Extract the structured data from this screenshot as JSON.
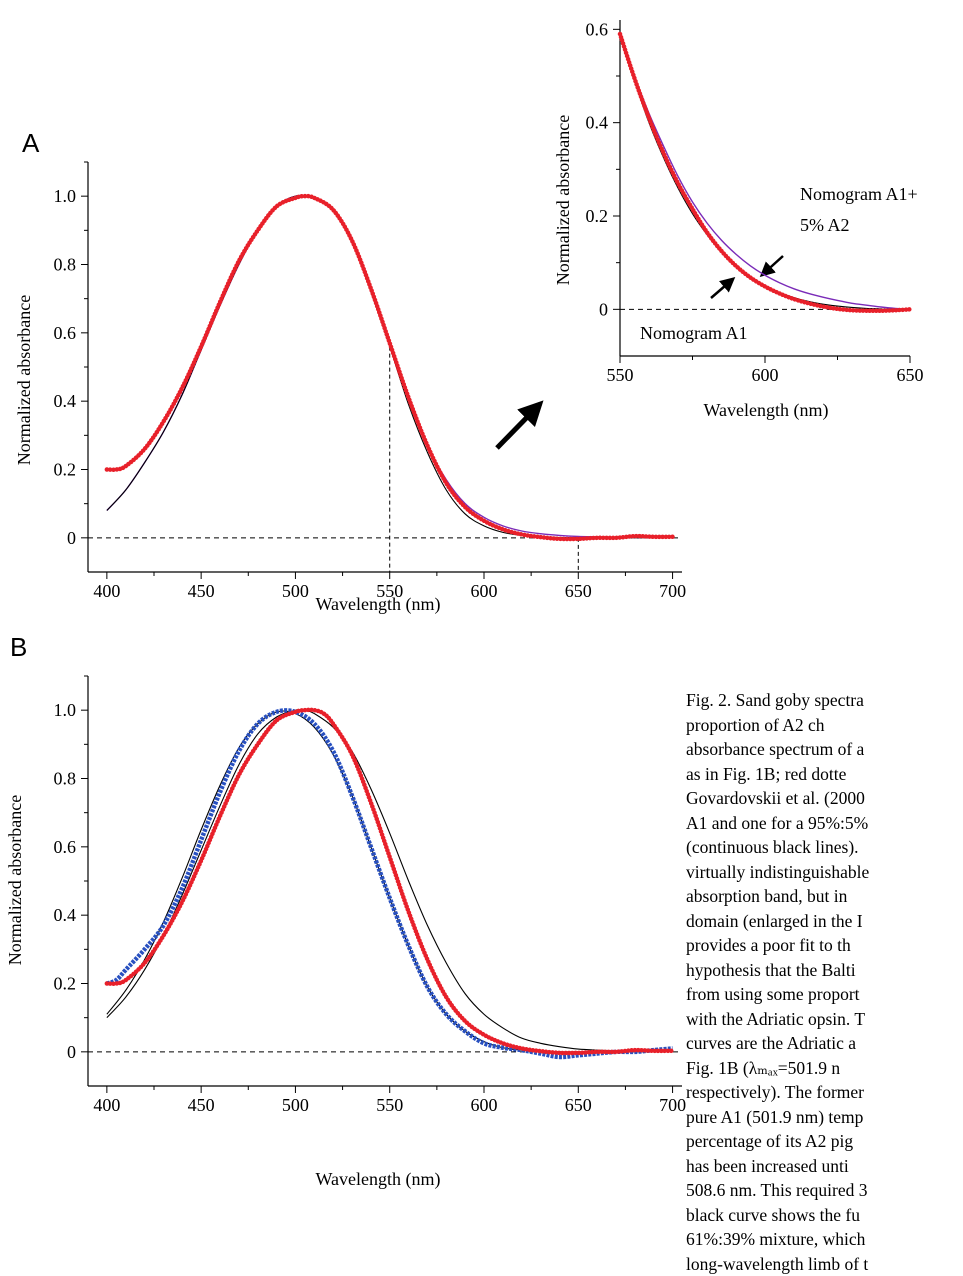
{
  "colors": {
    "red": "#e8202a",
    "purple": "#7a2bb8",
    "blue": "#2850c0",
    "black": "#000000"
  },
  "chart_data": [
    {
      "id": "A",
      "panel_label": "A",
      "type": "line",
      "title": "",
      "xlabel": "Wavelength (nm)",
      "ylabel": "Normalized absorbance",
      "xlim": [
        390,
        705
      ],
      "ylim": [
        -0.1,
        1.1
      ],
      "x_ticks": [
        "400",
        "450",
        "500",
        "550",
        "600",
        "650",
        "700"
      ],
      "y_ticks": [
        "0",
        "0.2",
        "0.4",
        "0.6",
        "0.8",
        "1.0"
      ],
      "reference_lines": [
        {
          "kind": "horizontal",
          "y": 0
        },
        {
          "kind": "vertical",
          "x": 550,
          "y_to": 0.58
        },
        {
          "kind": "vertical",
          "x": 650,
          "y_to": 0
        }
      ],
      "series": [
        {
          "color": "purple",
          "style": "solid",
          "x": [
            400,
            410,
            420,
            430,
            440,
            450,
            460,
            470,
            480,
            490,
            500,
            510,
            520,
            530,
            540,
            550,
            560,
            570,
            580,
            590,
            600,
            610,
            620,
            630,
            640,
            650,
            660,
            670,
            680,
            690,
            700
          ],
          "y": [
            0.08,
            0.14,
            0.22,
            0.31,
            0.42,
            0.55,
            0.68,
            0.8,
            0.9,
            0.97,
            1.0,
            0.995,
            0.96,
            0.87,
            0.73,
            0.57,
            0.41,
            0.27,
            0.17,
            0.1,
            0.06,
            0.035,
            0.02,
            0.012,
            0.007,
            0.004,
            0.003,
            0.002,
            0.001,
            0.001,
            0.0
          ]
        },
        {
          "color": "black",
          "style": "solid",
          "x": [
            400,
            410,
            420,
            430,
            440,
            450,
            460,
            470,
            480,
            490,
            500,
            510,
            520,
            530,
            540,
            550,
            560,
            570,
            580,
            590,
            600,
            610,
            620,
            630,
            640,
            650,
            660,
            670,
            680,
            690,
            700
          ],
          "y": [
            0.08,
            0.14,
            0.22,
            0.31,
            0.42,
            0.55,
            0.68,
            0.8,
            0.9,
            0.97,
            1.0,
            0.995,
            0.96,
            0.87,
            0.72,
            0.56,
            0.39,
            0.25,
            0.14,
            0.07,
            0.035,
            0.016,
            0.007,
            0.003,
            0.001,
            0.0,
            0.0,
            0.0,
            0.0,
            0.0,
            0.0
          ]
        },
        {
          "color": "red",
          "style": "dotted",
          "x": [
            400,
            405,
            410,
            420,
            430,
            440,
            450,
            460,
            470,
            480,
            490,
            500,
            505,
            510,
            520,
            530,
            540,
            550,
            560,
            570,
            580,
            590,
            600,
            610,
            620,
            630,
            640,
            650,
            660,
            670,
            680,
            690,
            700
          ],
          "y": [
            0.2,
            0.2,
            0.21,
            0.26,
            0.34,
            0.44,
            0.56,
            0.69,
            0.81,
            0.9,
            0.97,
            0.995,
            1.0,
            0.995,
            0.96,
            0.87,
            0.73,
            0.57,
            0.41,
            0.27,
            0.16,
            0.09,
            0.05,
            0.025,
            0.01,
            0.002,
            -0.003,
            -0.003,
            0.0,
            0.0,
            0.005,
            0.003,
            0.003
          ]
        }
      ]
    },
    {
      "id": "inset",
      "panel_label": "",
      "type": "line",
      "title": "",
      "xlabel": "Wavelength (nm)",
      "ylabel": "Normalized absorbance",
      "xlim": [
        550,
        650
      ],
      "ylim": [
        -0.1,
        0.62
      ],
      "x_ticks": [
        "550",
        "600",
        "650"
      ],
      "y_ticks": [
        "0",
        "0.2",
        "0.4",
        "0.6"
      ],
      "annotations": {
        "upper_line1": "Nomogram A1+",
        "upper_line2": "5% A2",
        "lower": "Nomogram A1"
      },
      "reference_lines": [
        {
          "kind": "horizontal",
          "y": 0
        }
      ],
      "series": [
        {
          "color": "purple",
          "style": "solid",
          "x": [
            550,
            555,
            560,
            565,
            570,
            575,
            580,
            585,
            590,
            595,
            600,
            605,
            610,
            615,
            620,
            625,
            630,
            635,
            640,
            645,
            650
          ],
          "y": [
            0.59,
            0.5,
            0.42,
            0.35,
            0.285,
            0.23,
            0.185,
            0.148,
            0.118,
            0.093,
            0.073,
            0.057,
            0.044,
            0.034,
            0.026,
            0.019,
            0.013,
            0.009,
            0.005,
            0.002,
            0.0
          ]
        },
        {
          "color": "black",
          "style": "solid",
          "x": [
            550,
            555,
            560,
            565,
            570,
            575,
            580,
            585,
            590,
            595,
            600,
            605,
            610,
            615,
            620,
            625,
            630,
            635,
            640,
            645,
            650
          ],
          "y": [
            0.59,
            0.49,
            0.4,
            0.325,
            0.26,
            0.205,
            0.16,
            0.122,
            0.092,
            0.068,
            0.05,
            0.036,
            0.025,
            0.017,
            0.011,
            0.007,
            0.004,
            0.002,
            0.001,
            0.0,
            0.0
          ]
        },
        {
          "color": "red",
          "style": "dotted",
          "x": [
            550,
            555,
            560,
            565,
            570,
            575,
            580,
            585,
            590,
            595,
            600,
            605,
            610,
            615,
            620,
            625,
            630,
            635,
            640,
            645,
            650
          ],
          "y": [
            0.59,
            0.495,
            0.41,
            0.335,
            0.27,
            0.215,
            0.165,
            0.125,
            0.093,
            0.068,
            0.049,
            0.034,
            0.022,
            0.013,
            0.006,
            0.001,
            -0.002,
            -0.003,
            -0.003,
            -0.002,
            0.0
          ]
        }
      ]
    },
    {
      "id": "B",
      "panel_label": "B",
      "type": "line",
      "title": "",
      "xlabel": "Wavelength (nm)",
      "ylabel": "Normalized absorbance",
      "xlim": [
        390,
        705
      ],
      "ylim": [
        -0.1,
        1.1
      ],
      "x_ticks": [
        "400",
        "450",
        "500",
        "550",
        "600",
        "650",
        "700"
      ],
      "y_ticks": [
        "0",
        "0.2",
        "0.4",
        "0.6",
        "0.8",
        "1.0"
      ],
      "reference_lines": [
        {
          "kind": "horizontal",
          "y": 0
        }
      ],
      "series": [
        {
          "color": "black",
          "style": "solid",
          "x": [
            400,
            410,
            420,
            430,
            440,
            450,
            460,
            470,
            480,
            490,
            500,
            505,
            510,
            520,
            530,
            540,
            550,
            560,
            570,
            580,
            590,
            600,
            610,
            620,
            630,
            640,
            650,
            660,
            670,
            680,
            690,
            700
          ],
          "y": [
            0.1,
            0.16,
            0.24,
            0.34,
            0.46,
            0.59,
            0.72,
            0.84,
            0.93,
            0.98,
            1.0,
            1.0,
            0.99,
            0.95,
            0.88,
            0.77,
            0.64,
            0.5,
            0.37,
            0.26,
            0.17,
            0.11,
            0.07,
            0.04,
            0.025,
            0.015,
            0.008,
            0.005,
            0.003,
            0.002,
            0.001,
            0.0
          ]
        },
        {
          "color": "black",
          "style": "solid",
          "x": [
            400,
            410,
            420,
            430,
            440,
            450,
            460,
            470,
            480,
            490,
            500,
            510,
            520,
            530,
            540,
            550,
            560,
            570,
            580,
            590,
            600,
            610,
            620,
            630,
            640,
            650,
            660,
            670,
            680,
            690,
            700
          ],
          "y": [
            0.11,
            0.18,
            0.27,
            0.38,
            0.51,
            0.65,
            0.78,
            0.89,
            0.96,
            0.995,
            0.99,
            0.95,
            0.87,
            0.75,
            0.6,
            0.45,
            0.31,
            0.19,
            0.11,
            0.06,
            0.03,
            0.012,
            0.005,
            0.002,
            0.0,
            0.0,
            0.0,
            0.0,
            0.0,
            0.0,
            0.0
          ]
        },
        {
          "color": "blue",
          "style": "squares",
          "x": [
            400,
            405,
            410,
            420,
            430,
            440,
            450,
            460,
            470,
            480,
            490,
            500,
            510,
            520,
            530,
            540,
            550,
            560,
            570,
            580,
            590,
            600,
            610,
            620,
            630,
            640,
            650,
            660,
            670,
            680,
            690,
            700
          ],
          "y": [
            0.2,
            0.21,
            0.24,
            0.3,
            0.37,
            0.48,
            0.62,
            0.76,
            0.88,
            0.96,
            0.995,
            0.995,
            0.96,
            0.88,
            0.75,
            0.6,
            0.45,
            0.31,
            0.19,
            0.11,
            0.06,
            0.025,
            0.012,
            0.005,
            -0.005,
            -0.015,
            -0.01,
            -0.005,
            0.0,
            0.0,
            0.005,
            0.01
          ]
        },
        {
          "color": "red",
          "style": "dotted",
          "x": [
            400,
            405,
            410,
            420,
            430,
            440,
            450,
            460,
            470,
            480,
            490,
            500,
            505,
            510,
            515,
            520,
            530,
            540,
            550,
            560,
            570,
            580,
            590,
            600,
            610,
            620,
            630,
            640,
            650,
            660,
            670,
            680,
            690,
            700
          ],
          "y": [
            0.2,
            0.2,
            0.21,
            0.26,
            0.34,
            0.44,
            0.56,
            0.69,
            0.81,
            0.9,
            0.97,
            0.995,
            1.0,
            1.0,
            0.99,
            0.96,
            0.87,
            0.73,
            0.57,
            0.41,
            0.27,
            0.16,
            0.09,
            0.05,
            0.025,
            0.01,
            0.002,
            -0.003,
            -0.003,
            0.0,
            0.0,
            0.005,
            0.003,
            0.003
          ]
        }
      ]
    }
  ],
  "caption": {
    "lines": [
      "Fig. 2. Sand goby spectra",
      "proportion  of  A2  ch",
      "absorbance spectrum of a",
      "as in Fig. 1B; red dotte",
      "Govardovskii et al. (2000",
      "A1 and one for a 95%:5%",
      "(continuous black lines).",
      "virtually indistinguishable",
      "absorption band, but in",
      "domain (enlarged in the I",
      "provides a poor fit to th",
      "hypothesis that the Balti",
      "from using some proport",
      "with the Adriatic opsin. T",
      "curves are the Adriatic a",
      "Fig. 1B      (λₘₐₓ=501.9 n",
      "respectively). The former",
      "pure A1 (501.9 nm) temp",
      "percentage of its A2 pig",
      "has been increased unti",
      "508.6 nm. This required 3",
      "black curve shows the fu",
      "61%:39% mixture, which",
      "long-wavelength limb of t"
    ]
  }
}
